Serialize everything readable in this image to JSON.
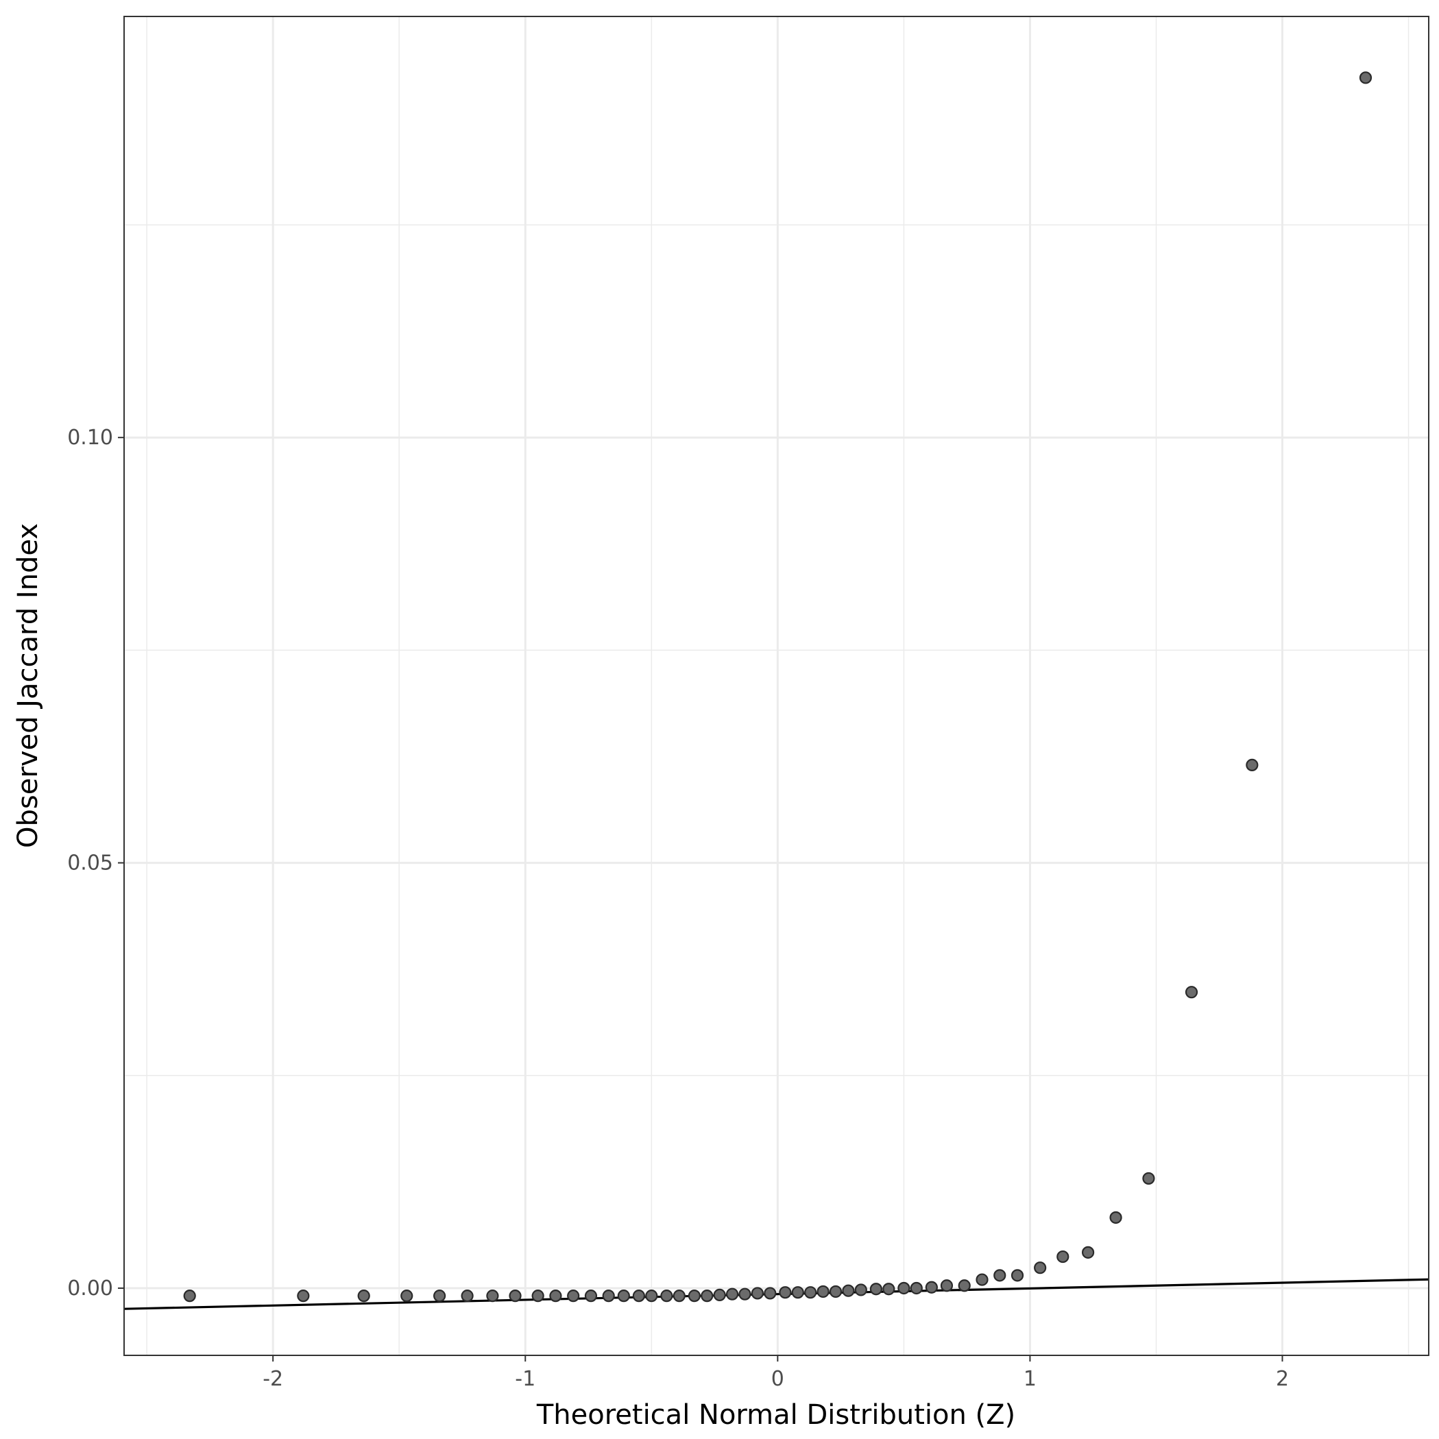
{
  "chart_data": {
    "type": "scatter",
    "title": "",
    "xlabel": "Theoretical Normal Distribution (Z)",
    "ylabel": "Observed Jaccard Index",
    "xlim": [
      -2.59,
      2.58
    ],
    "ylim": [
      -0.0079,
      0.1495
    ],
    "x_ticks": [
      {
        "value": -2,
        "label": "-2"
      },
      {
        "value": -1,
        "label": "-1"
      },
      {
        "value": 0,
        "label": "0"
      },
      {
        "value": 1,
        "label": "1"
      },
      {
        "value": 2,
        "label": "2"
      }
    ],
    "y_ticks": [
      {
        "value": 0.0,
        "label": "0.00"
      },
      {
        "value": 0.05,
        "label": "0.05"
      },
      {
        "value": 0.1,
        "label": "0.10"
      }
    ],
    "x_minor_grid": [
      -2.5,
      -1.5,
      -0.5,
      0.5,
      1.5,
      2.5
    ],
    "y_minor_grid": [
      0.025,
      0.075,
      0.125
    ],
    "grid": true,
    "reference_line": {
      "slope": 0.00067,
      "intercept": -0.0007
    },
    "series": [
      {
        "values": [
          {
            "x": -2.33,
            "y": -0.0009
          },
          {
            "x": -1.88,
            "y": -0.0009
          },
          {
            "x": -1.64,
            "y": -0.0009
          },
          {
            "x": -1.47,
            "y": -0.0009
          },
          {
            "x": -1.34,
            "y": -0.0009
          },
          {
            "x": -1.23,
            "y": -0.0009
          },
          {
            "x": -1.13,
            "y": -0.0009
          },
          {
            "x": -1.04,
            "y": -0.0009
          },
          {
            "x": -0.95,
            "y": -0.0009
          },
          {
            "x": -0.88,
            "y": -0.0009
          },
          {
            "x": -0.81,
            "y": -0.0009
          },
          {
            "x": -0.74,
            "y": -0.0009
          },
          {
            "x": -0.67,
            "y": -0.0009
          },
          {
            "x": -0.61,
            "y": -0.0009
          },
          {
            "x": -0.55,
            "y": -0.0009
          },
          {
            "x": -0.5,
            "y": -0.0009
          },
          {
            "x": -0.44,
            "y": -0.0009
          },
          {
            "x": -0.39,
            "y": -0.0009
          },
          {
            "x": -0.33,
            "y": -0.0009
          },
          {
            "x": -0.28,
            "y": -0.0009
          },
          {
            "x": -0.23,
            "y": -0.0008
          },
          {
            "x": -0.18,
            "y": -0.0007
          },
          {
            "x": -0.13,
            "y": -0.0007
          },
          {
            "x": -0.08,
            "y": -0.0006
          },
          {
            "x": -0.03,
            "y": -0.0006
          },
          {
            "x": 0.03,
            "y": -0.0005
          },
          {
            "x": 0.08,
            "y": -0.0005
          },
          {
            "x": 0.13,
            "y": -0.0005
          },
          {
            "x": 0.18,
            "y": -0.0004
          },
          {
            "x": 0.23,
            "y": -0.0004
          },
          {
            "x": 0.28,
            "y": -0.0003
          },
          {
            "x": 0.33,
            "y": -0.0002
          },
          {
            "x": 0.39,
            "y": -0.0001
          },
          {
            "x": 0.44,
            "y": -0.0001
          },
          {
            "x": 0.5,
            "y": 0.0
          },
          {
            "x": 0.55,
            "y": 0.0
          },
          {
            "x": 0.61,
            "y": 0.0001
          },
          {
            "x": 0.67,
            "y": 0.0003
          },
          {
            "x": 0.74,
            "y": 0.0003
          },
          {
            "x": 0.81,
            "y": 0.001
          },
          {
            "x": 0.88,
            "y": 0.0015
          },
          {
            "x": 0.95,
            "y": 0.0015
          },
          {
            "x": 1.04,
            "y": 0.0024
          },
          {
            "x": 1.13,
            "y": 0.0037
          },
          {
            "x": 1.23,
            "y": 0.0042
          },
          {
            "x": 1.34,
            "y": 0.0083
          },
          {
            "x": 1.47,
            "y": 0.0129
          },
          {
            "x": 1.64,
            "y": 0.0348
          },
          {
            "x": 1.88,
            "y": 0.0615
          },
          {
            "x": 2.33,
            "y": 0.1423
          }
        ]
      }
    ]
  }
}
